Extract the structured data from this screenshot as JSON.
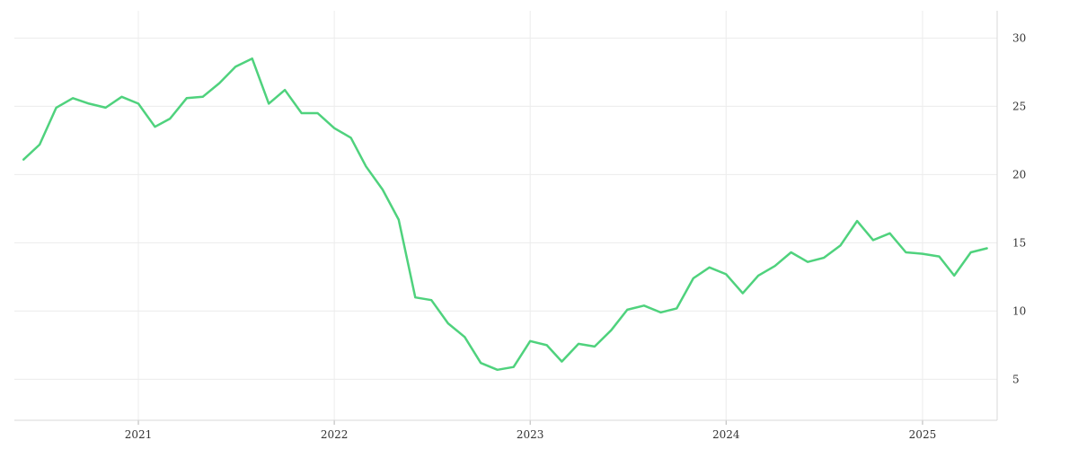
{
  "chart_data": {
    "type": "line",
    "title": "",
    "xlabel": "",
    "ylabel": "",
    "x_tick_labels": [
      "2021",
      "2022",
      "2023",
      "2024",
      "2025"
    ],
    "y_tick_labels": [
      "5",
      "10",
      "15",
      "20",
      "25",
      "30"
    ],
    "ylim": [
      2,
      32
    ],
    "xlim": [
      "2020-05-15",
      "2025-05-20"
    ],
    "grid": true,
    "legend": "none",
    "colors": {
      "line": "#4fd27d",
      "grid": "#ececec",
      "axis": "#d9d9d9",
      "text": "#333333"
    },
    "series": [
      {
        "x": [
          "2020-06",
          "2020-07",
          "2020-08",
          "2020-09",
          "2020-10",
          "2020-11",
          "2020-12",
          "2021-01",
          "2021-02",
          "2021-03",
          "2021-04",
          "2021-05",
          "2021-06",
          "2021-07",
          "2021-08",
          "2021-09",
          "2021-10",
          "2021-11",
          "2021-12",
          "2022-01",
          "2022-02",
          "2022-03",
          "2022-04",
          "2022-05",
          "2022-06",
          "2022-07",
          "2022-08",
          "2022-09",
          "2022-10",
          "2022-11",
          "2022-12",
          "2023-01",
          "2023-02",
          "2023-03",
          "2023-04",
          "2023-05",
          "2023-06",
          "2023-07",
          "2023-08",
          "2023-09",
          "2023-10",
          "2023-11",
          "2023-12",
          "2024-01",
          "2024-02",
          "2024-03",
          "2024-04",
          "2024-05",
          "2024-06",
          "2024-07",
          "2024-08",
          "2024-09",
          "2024-10",
          "2024-11",
          "2024-12",
          "2025-01",
          "2025-02",
          "2025-03",
          "2025-04",
          "2025-05"
        ],
        "values": [
          21.1,
          22.2,
          24.9,
          25.6,
          25.2,
          24.9,
          25.7,
          25.2,
          23.5,
          24.1,
          25.6,
          25.7,
          26.7,
          27.9,
          28.5,
          25.2,
          26.2,
          24.5,
          24.5,
          23.4,
          22.7,
          20.6,
          18.9,
          16.7,
          11.0,
          10.8,
          9.1,
          8.1,
          6.2,
          5.7,
          5.9,
          7.8,
          7.5,
          6.3,
          7.6,
          7.4,
          8.6,
          10.1,
          10.4,
          9.9,
          10.2,
          12.4,
          13.2,
          12.7,
          11.3,
          12.6,
          13.3,
          14.3,
          13.6,
          13.9,
          14.8,
          16.6,
          15.2,
          15.7,
          14.3,
          14.2,
          14.0,
          12.6,
          14.3,
          14.6
        ]
      }
    ]
  }
}
